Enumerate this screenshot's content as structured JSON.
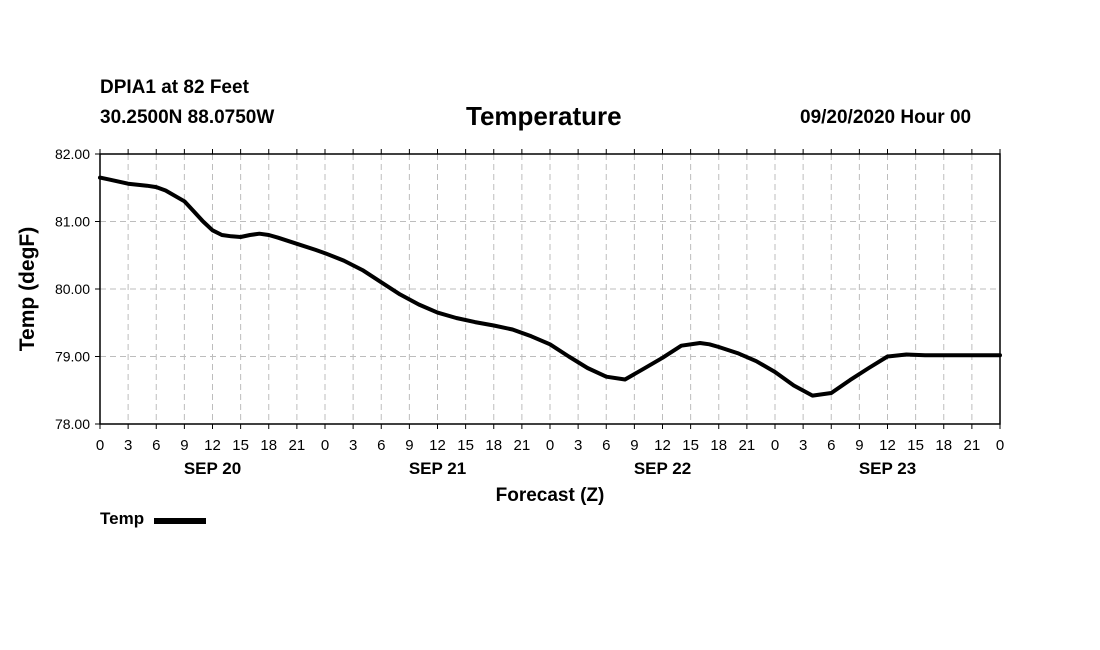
{
  "header": {
    "station": "DPIA1 at 82 Feet",
    "coords": "30.2500N 88.0750W",
    "title": "Temperature",
    "run": "09/20/2020 Hour 00"
  },
  "chart_data": {
    "type": "line",
    "title": "Temperature",
    "ylabel": "Temp (degF)",
    "xlabel": "Forecast (Z)",
    "ylim": [
      78.0,
      82.0
    ],
    "yticks": [
      "78.00",
      "79.00",
      "80.00",
      "81.00",
      "82.00"
    ],
    "xlim_hours": [
      0,
      96
    ],
    "xtick_labels": [
      "0",
      "3",
      "6",
      "9",
      "12",
      "15",
      "18",
      "21",
      "0",
      "3",
      "6",
      "9",
      "12",
      "15",
      "18",
      "21",
      "0",
      "3",
      "6",
      "9",
      "12",
      "15",
      "18",
      "21",
      "0",
      "3",
      "6",
      "9",
      "12",
      "15",
      "18",
      "21",
      "0"
    ],
    "day_labels": [
      {
        "label": "SEP 20",
        "hour": 12
      },
      {
        "label": "SEP 21",
        "hour": 36
      },
      {
        "label": "SEP 22",
        "hour": 60
      },
      {
        "label": "SEP 23",
        "hour": 84
      }
    ],
    "grid": true,
    "legend_position": "bottom-left",
    "series": [
      {
        "name": "Temp",
        "color": "#000000",
        "x": [
          0,
          1,
          3,
          5,
          6,
          7,
          9,
          10,
          11,
          12,
          13,
          14,
          15,
          16,
          17,
          18,
          19,
          21,
          23,
          24,
          26,
          28,
          30,
          32,
          34,
          36,
          38,
          40,
          42,
          44,
          46,
          48,
          50,
          52,
          54,
          56,
          58,
          60,
          62,
          64,
          65,
          66,
          68,
          70,
          72,
          74,
          76,
          78,
          80,
          82,
          84,
          86,
          88,
          89,
          90,
          92,
          94,
          95,
          96
        ],
        "values": [
          81.65,
          81.62,
          81.56,
          81.53,
          81.51,
          81.46,
          81.3,
          81.15,
          81.0,
          80.87,
          80.8,
          80.78,
          80.77,
          80.8,
          80.82,
          80.8,
          80.76,
          80.67,
          80.58,
          80.53,
          80.42,
          80.28,
          80.1,
          79.92,
          79.77,
          79.65,
          79.57,
          79.51,
          79.46,
          79.4,
          79.3,
          79.18,
          79.0,
          78.83,
          78.7,
          78.66,
          78.82,
          78.98,
          79.16,
          79.2,
          79.18,
          79.14,
          79.05,
          78.93,
          78.77,
          78.57,
          78.42,
          78.46,
          78.65,
          78.83,
          79.0,
          79.03,
          79.02,
          79.02,
          79.02,
          79.02,
          79.02,
          79.02,
          79.02
        ]
      }
    ]
  },
  "legend": {
    "label": "Temp",
    "color": "#000000"
  }
}
